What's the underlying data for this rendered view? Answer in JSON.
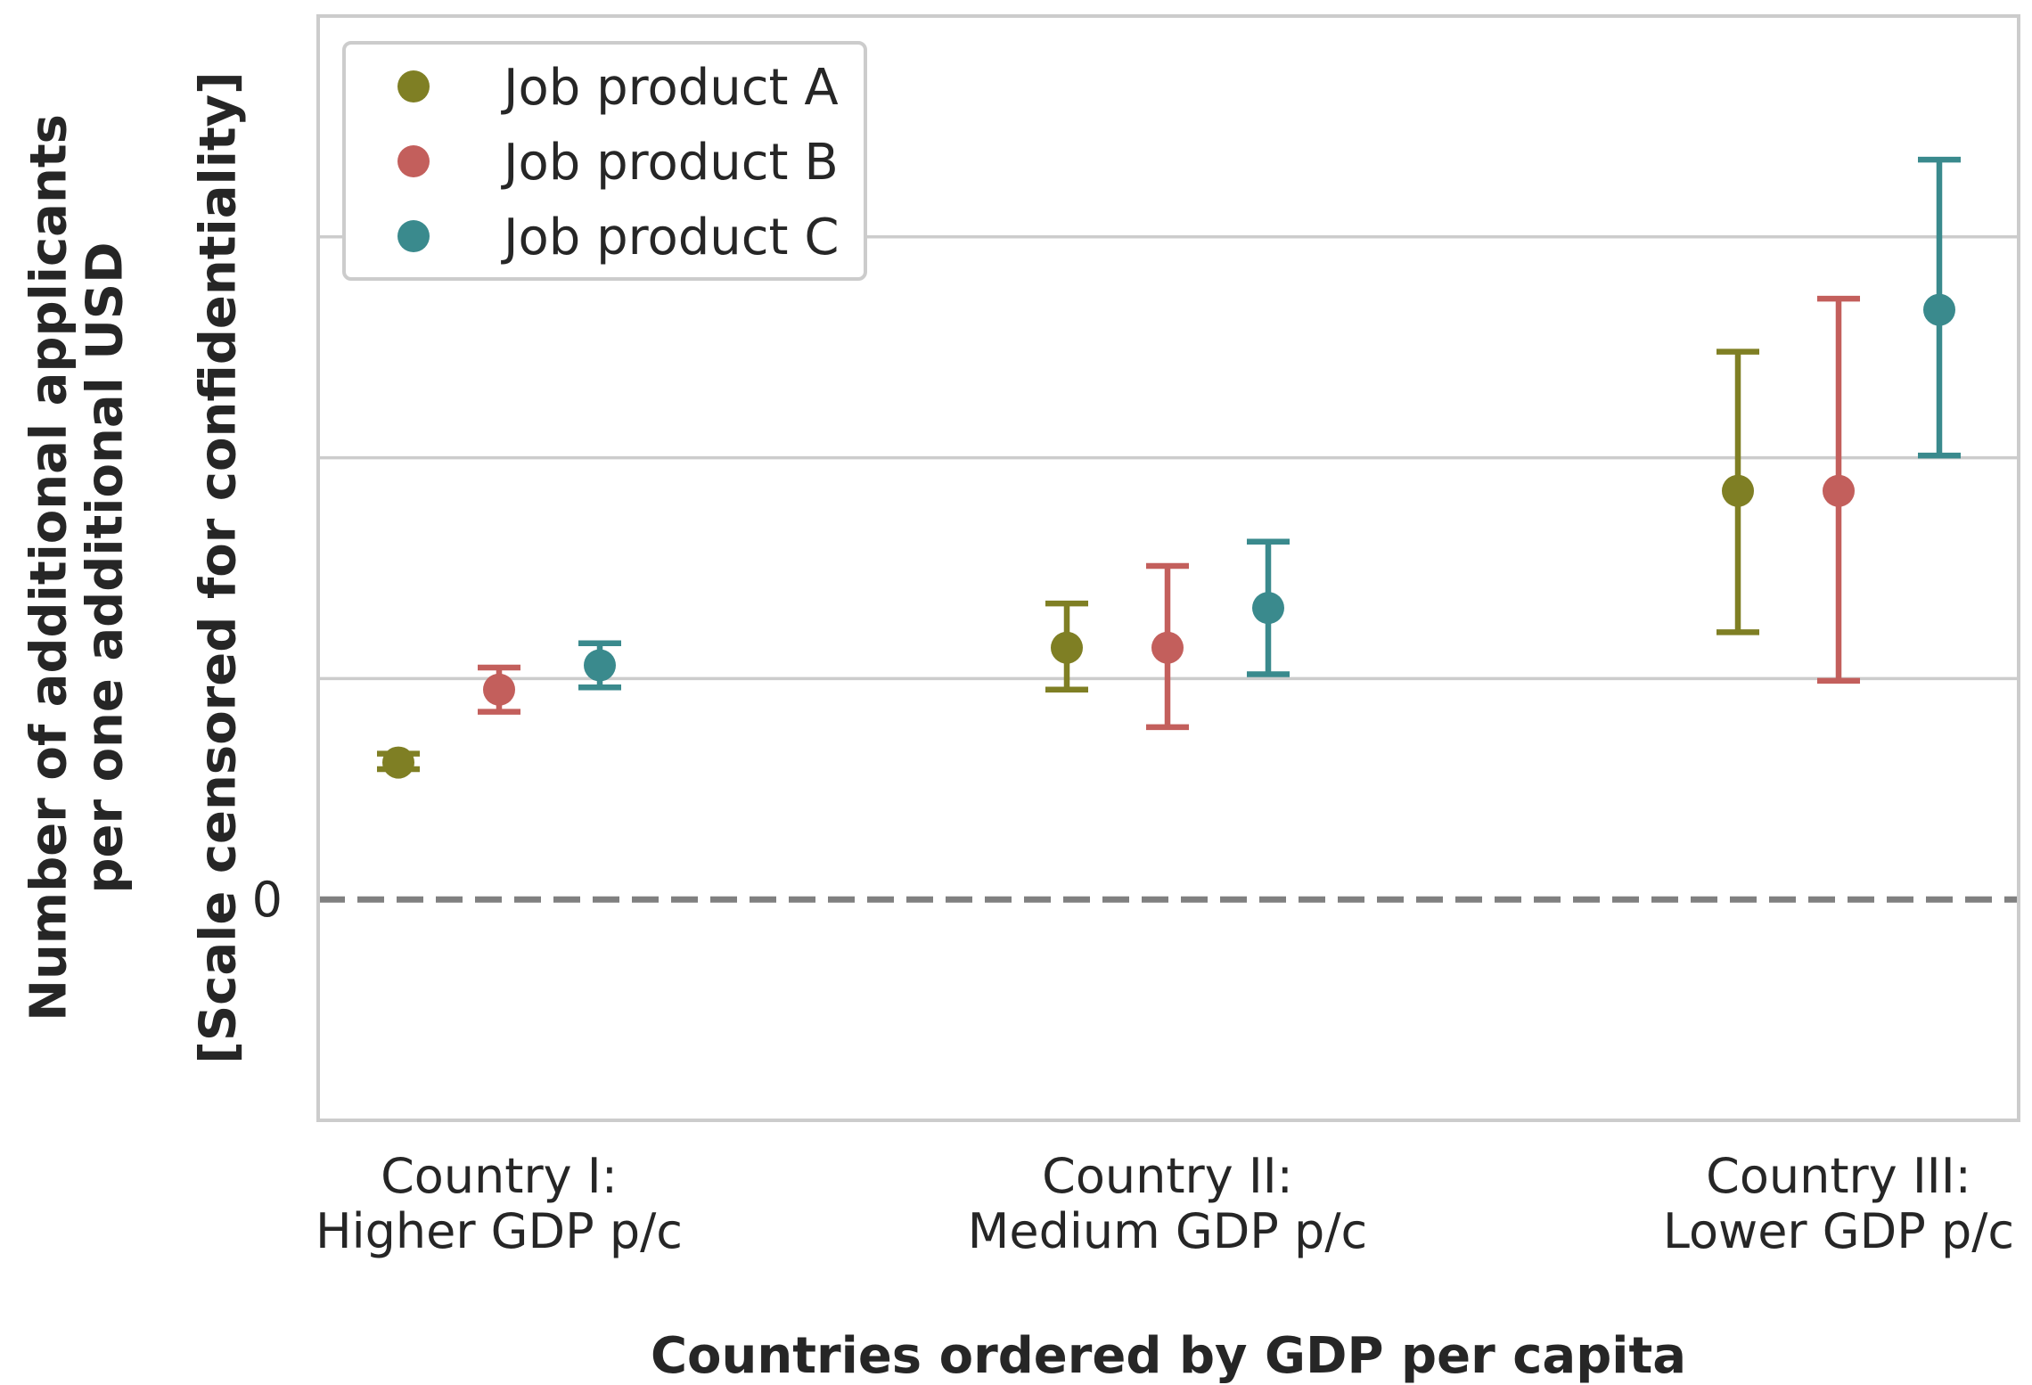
{
  "chart_data": {
    "type": "scatter",
    "subtype": "point-with-error-bars",
    "title": "",
    "xlabel": "Countries ordered by GDP per capita",
    "ylabel_lines": [
      "Number of additional applicants",
      "per one additional USD",
      "[Scale censored for confidentiality]"
    ],
    "categories": [
      [
        "Country I:",
        "Higher GDP p/c"
      ],
      [
        "Country II:",
        "Medium GDP p/c"
      ],
      [
        "Country III:",
        "Lower GDP p/c"
      ]
    ],
    "y_tick_labels": [
      {
        "value": 0,
        "label": "0"
      }
    ],
    "y_gridlines": [
      1,
      2,
      3
    ],
    "ylim": [
      -1,
      4
    ],
    "zero_line": {
      "value": 0,
      "style": "dashed",
      "color": "#808080"
    },
    "grid": true,
    "legend": {
      "position": "top-left"
    },
    "series": [
      {
        "name": "Job product A",
        "color": "#7f7f24",
        "values": [
          0.62,
          1.14,
          1.85
        ],
        "lower": [
          0.59,
          0.95,
          1.21
        ],
        "upper": [
          0.66,
          1.34,
          2.48
        ]
      },
      {
        "name": "Job product B",
        "color": "#c35f5c",
        "values": [
          0.95,
          1.14,
          1.85
        ],
        "lower": [
          0.85,
          0.78,
          0.99
        ],
        "upper": [
          1.05,
          1.51,
          2.72
        ]
      },
      {
        "name": "Job product C",
        "color": "#3a8a8d",
        "values": [
          1.06,
          1.32,
          2.67
        ],
        "lower": [
          0.96,
          1.02,
          2.01
        ],
        "upper": [
          1.16,
          1.62,
          3.35
        ]
      }
    ]
  }
}
